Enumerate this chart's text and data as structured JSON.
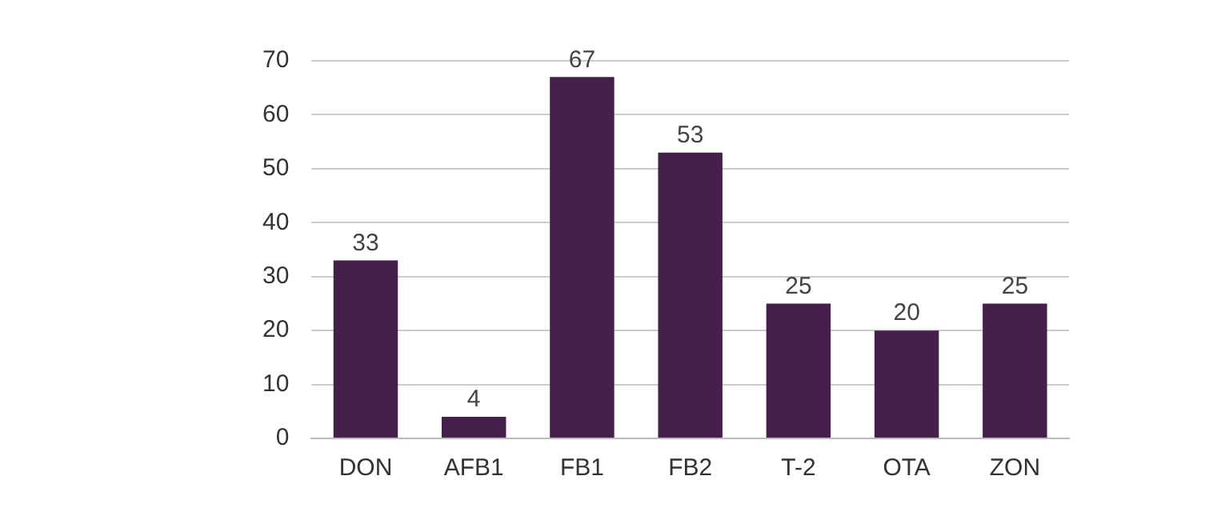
{
  "chart_data": {
    "type": "bar",
    "categories": [
      "DON",
      "AFB1",
      "FB1",
      "FB2",
      "T-2",
      "OTA",
      "ZON"
    ],
    "values": [
      33,
      4,
      67,
      53,
      25,
      20,
      25
    ],
    "color": "#45204a",
    "ylim": [
      0,
      70
    ],
    "yticks": [
      0,
      10,
      20,
      30,
      40,
      50,
      60,
      70
    ],
    "grid": "y",
    "data_labels": true,
    "legend": false
  }
}
